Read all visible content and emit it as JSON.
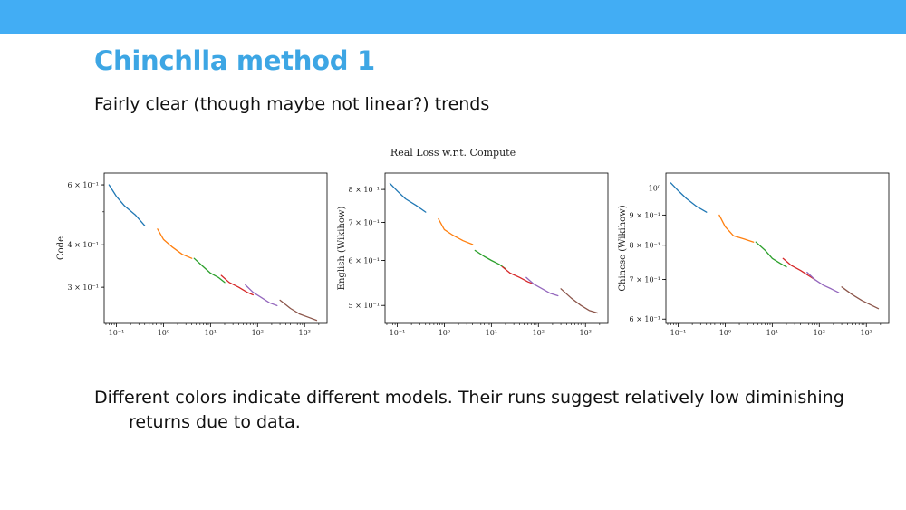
{
  "header": {
    "title": "Chinchlla method 1"
  },
  "subtitle": "Fairly clear (though maybe not linear?) trends",
  "body": "Different colors indicate different models. Their runs suggest relatively low diminishing returns due to data.",
  "figure_title": "Real Loss w.r.t. Compute",
  "series_colors": [
    "#1f77b4",
    "#ff7f0e",
    "#2ca02c",
    "#d62728",
    "#9467bd",
    "#8c564b"
  ],
  "chart_data": [
    {
      "type": "line",
      "ylabel": "Code",
      "xscale": "log",
      "yscale": "log",
      "xlim": [
        0.055,
        3000
      ],
      "ylim": [
        0.235,
        0.65
      ],
      "xticks": [
        {
          "v": 0.1,
          "label": "10⁻¹"
        },
        {
          "v": 1,
          "label": "10⁰"
        },
        {
          "v": 10,
          "label": "10¹"
        },
        {
          "v": 100,
          "label": "10²"
        },
        {
          "v": 1000,
          "label": "10³"
        }
      ],
      "yticks": [
        {
          "v": 0.6,
          "label": "6 × 10⁻¹"
        },
        {
          "v": 0.4,
          "label": "4 × 10⁻¹"
        },
        {
          "v": 0.3,
          "label": "3 × 10⁻¹"
        }
      ],
      "series": [
        {
          "x": [
            0.07,
            0.1,
            0.15,
            0.25,
            0.4
          ],
          "y": [
            0.6,
            0.555,
            0.52,
            0.49,
            0.455
          ]
        },
        {
          "x": [
            0.75,
            1.0,
            1.5,
            2.5,
            4.0
          ],
          "y": [
            0.445,
            0.415,
            0.395,
            0.375,
            0.365
          ]
        },
        {
          "x": [
            4.5,
            7,
            10,
            15,
            20
          ],
          "y": [
            0.365,
            0.345,
            0.33,
            0.32,
            0.31
          ]
        },
        {
          "x": [
            17,
            25,
            40,
            60,
            80
          ],
          "y": [
            0.325,
            0.31,
            0.3,
            0.29,
            0.285
          ]
        },
        {
          "x": [
            55,
            80,
            120,
            180,
            260
          ],
          "y": [
            0.305,
            0.29,
            0.28,
            0.27,
            0.265
          ]
        },
        {
          "x": [
            300,
            500,
            800,
            1200,
            1800
          ],
          "y": [
            0.275,
            0.26,
            0.25,
            0.245,
            0.24
          ]
        }
      ]
    },
    {
      "type": "line",
      "ylabel": "English (Wikihow)",
      "xscale": "log",
      "yscale": "log",
      "xlim": [
        0.055,
        3000
      ],
      "ylim": [
        0.465,
        0.855
      ],
      "xticks": [
        {
          "v": 0.1,
          "label": "10⁻¹"
        },
        {
          "v": 1,
          "label": "10⁰"
        },
        {
          "v": 10,
          "label": "10¹"
        },
        {
          "v": 100,
          "label": "10²"
        },
        {
          "v": 1000,
          "label": "10³"
        }
      ],
      "yticks": [
        {
          "v": 0.8,
          "label": "8 × 10⁻¹"
        },
        {
          "v": 0.7,
          "label": "7 × 10⁻¹"
        },
        {
          "v": 0.6,
          "label": "6 × 10⁻¹"
        },
        {
          "v": 0.5,
          "label": "5 × 10⁻¹"
        }
      ],
      "series": [
        {
          "x": [
            0.07,
            0.1,
            0.15,
            0.25,
            0.4
          ],
          "y": [
            0.82,
            0.795,
            0.77,
            0.75,
            0.73
          ]
        },
        {
          "x": [
            0.75,
            1.0,
            1.5,
            2.5,
            4.0
          ],
          "y": [
            0.71,
            0.68,
            0.665,
            0.65,
            0.64
          ]
        },
        {
          "x": [
            4.5,
            7,
            10,
            15,
            20
          ],
          "y": [
            0.625,
            0.61,
            0.6,
            0.59,
            0.58
          ]
        },
        {
          "x": [
            17,
            25,
            40,
            60,
            80
          ],
          "y": [
            0.585,
            0.57,
            0.56,
            0.55,
            0.545
          ]
        },
        {
          "x": [
            55,
            80,
            120,
            180,
            260
          ],
          "y": [
            0.56,
            0.545,
            0.535,
            0.525,
            0.52
          ]
        },
        {
          "x": [
            300,
            500,
            800,
            1200,
            1800
          ],
          "y": [
            0.535,
            0.515,
            0.5,
            0.49,
            0.485
          ]
        }
      ]
    },
    {
      "type": "line",
      "ylabel": "Chinese (Wikihow)",
      "xscale": "log",
      "yscale": "log",
      "xlim": [
        0.055,
        3000
      ],
      "ylim": [
        0.59,
        1.06
      ],
      "xticks": [
        {
          "v": 0.1,
          "label": "10⁻¹"
        },
        {
          "v": 1,
          "label": "10⁰"
        },
        {
          "v": 10,
          "label": "10¹"
        },
        {
          "v": 100,
          "label": "10²"
        },
        {
          "v": 1000,
          "label": "10³"
        }
      ],
      "yticks": [
        {
          "v": 1.0,
          "label": "10⁰"
        },
        {
          "v": 0.9,
          "label": "9 × 10⁻¹"
        },
        {
          "v": 0.8,
          "label": "8 × 10⁻¹"
        },
        {
          "v": 0.7,
          "label": "7 × 10⁻¹"
        },
        {
          "v": 0.6,
          "label": "6 × 10⁻¹"
        }
      ],
      "series": [
        {
          "x": [
            0.07,
            0.1,
            0.15,
            0.25,
            0.4
          ],
          "y": [
            1.02,
            0.99,
            0.96,
            0.93,
            0.91
          ]
        },
        {
          "x": [
            0.75,
            1.0,
            1.5,
            2.5,
            4.0
          ],
          "y": [
            0.9,
            0.86,
            0.83,
            0.82,
            0.81
          ]
        },
        {
          "x": [
            4.5,
            7,
            10,
            15,
            20
          ],
          "y": [
            0.81,
            0.785,
            0.76,
            0.745,
            0.735
          ]
        },
        {
          "x": [
            17,
            25,
            40,
            60,
            80
          ],
          "y": [
            0.76,
            0.74,
            0.725,
            0.71,
            0.7
          ]
        },
        {
          "x": [
            55,
            80,
            120,
            180,
            260
          ],
          "y": [
            0.72,
            0.7,
            0.685,
            0.675,
            0.665
          ]
        },
        {
          "x": [
            300,
            500,
            800,
            1200,
            1800
          ],
          "y": [
            0.68,
            0.66,
            0.645,
            0.635,
            0.625
          ]
        }
      ]
    }
  ]
}
